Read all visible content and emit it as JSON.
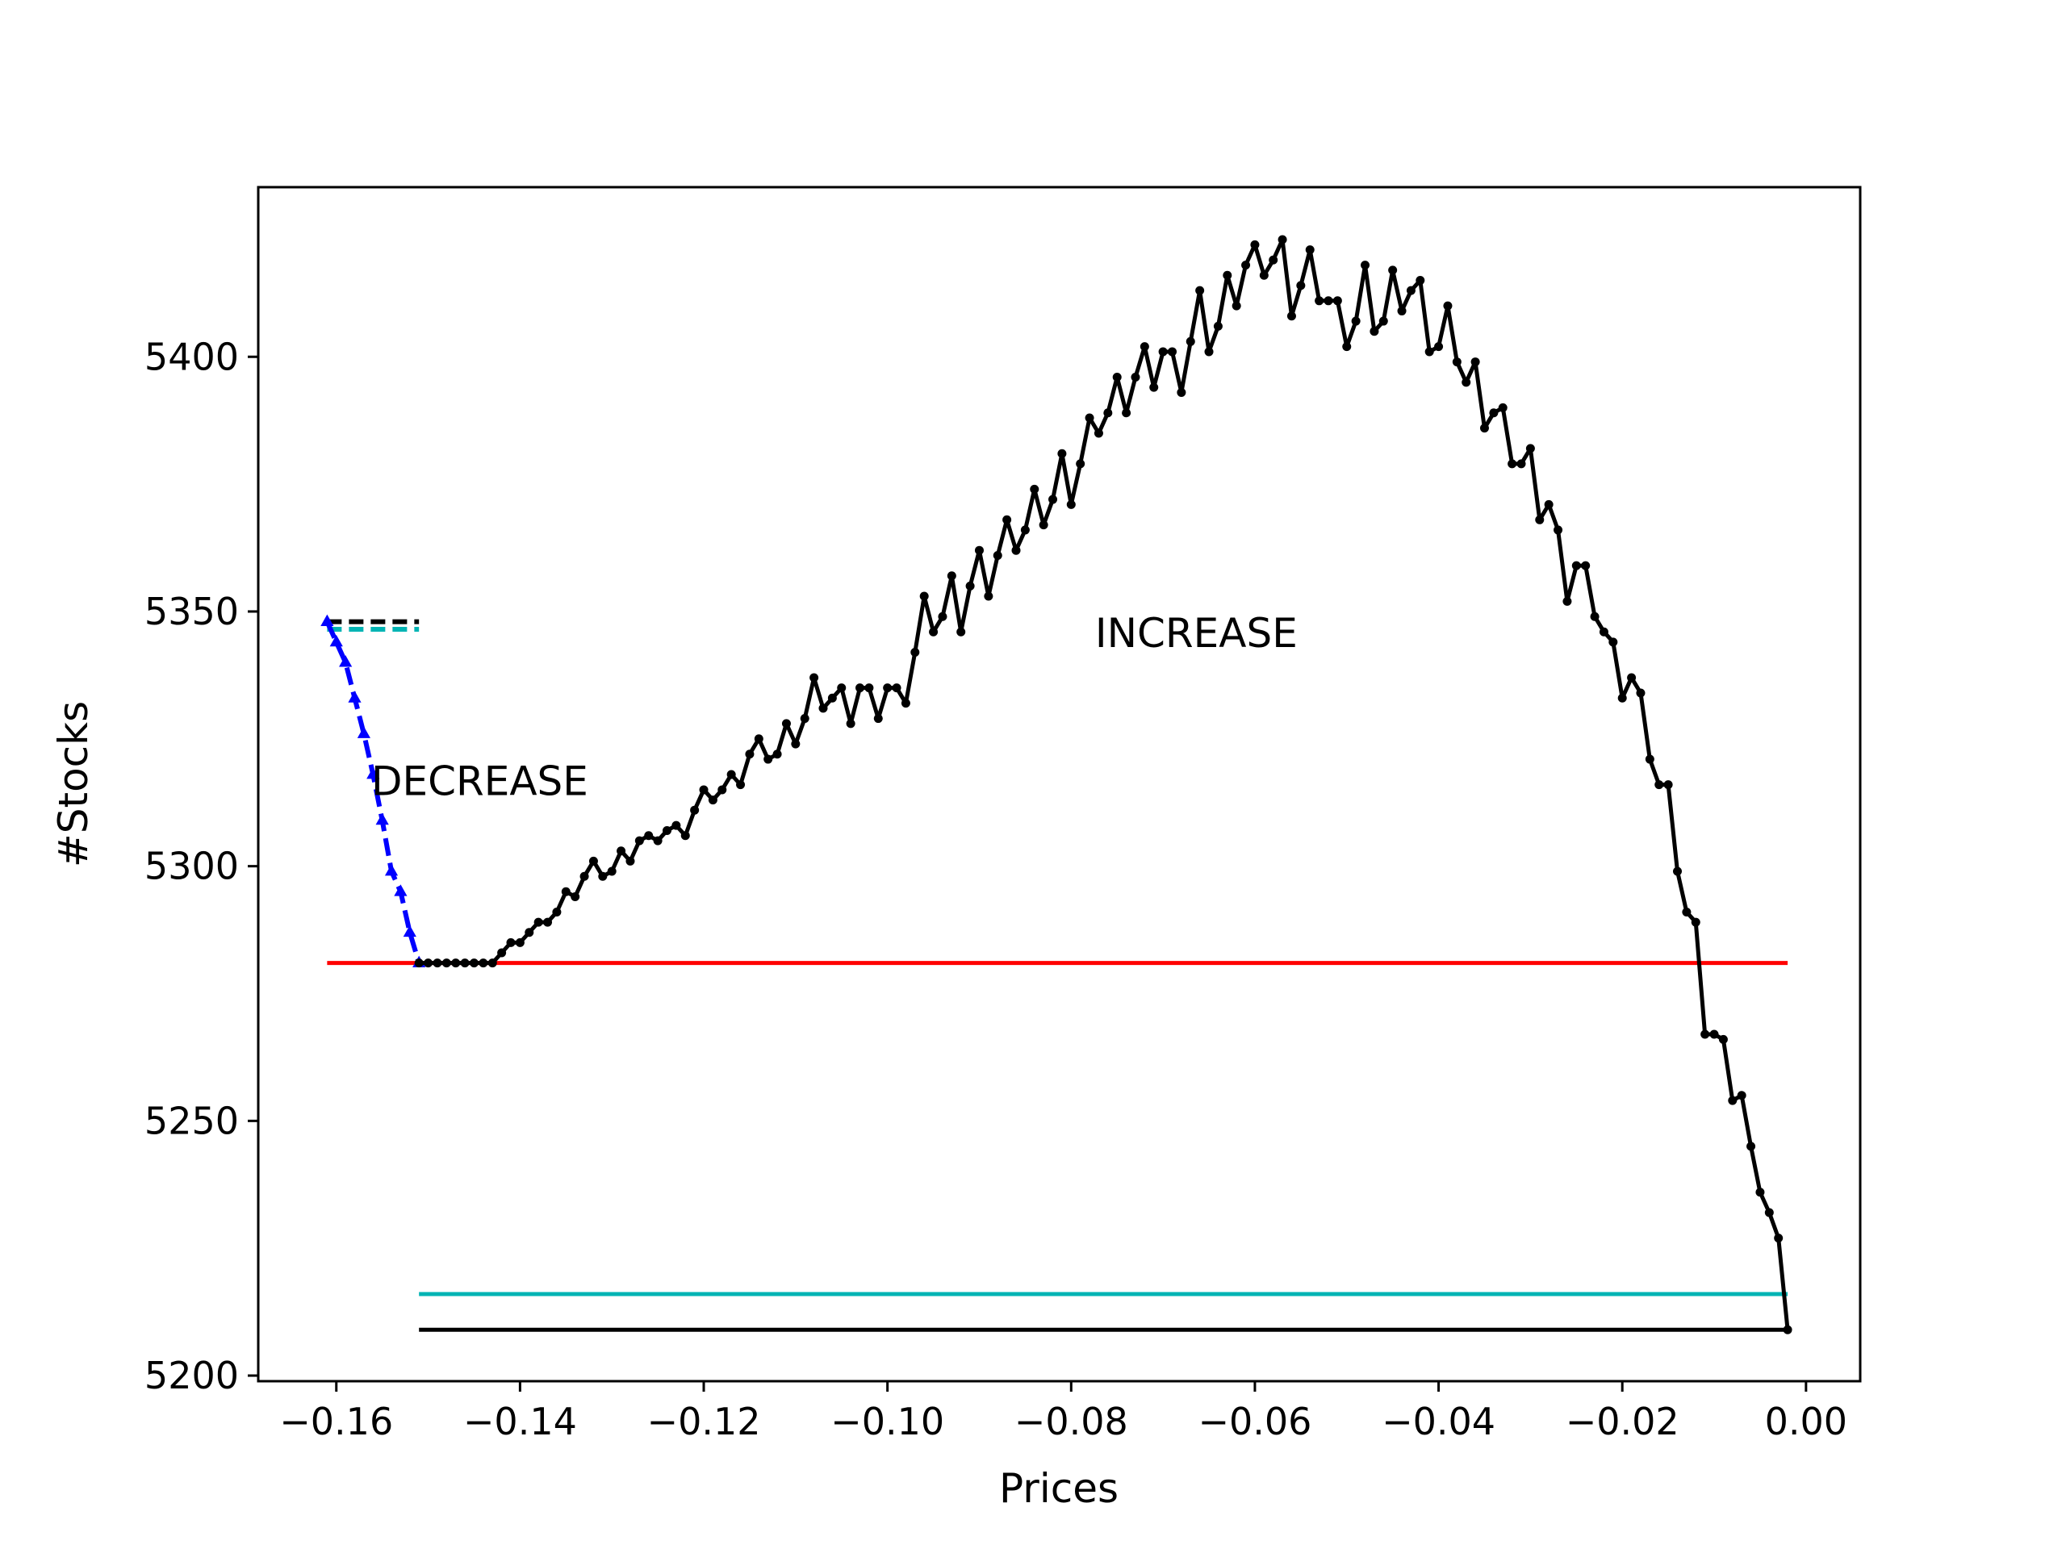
{
  "chart_data": {
    "type": "line",
    "xlabel": "Prices",
    "ylabel": "#Stocks",
    "xlim": [
      -0.1685,
      0.0059
    ],
    "ylim": [
      5198.9,
      5433.3
    ],
    "xticks": [
      -0.16,
      -0.14,
      -0.12,
      -0.1,
      -0.08,
      -0.06,
      -0.04,
      -0.02,
      0.0
    ],
    "xtick_labels": [
      "−0.16",
      "−0.14",
      "−0.12",
      "−0.10",
      "−0.08",
      "−0.06",
      "−0.04",
      "−0.02",
      "0.00"
    ],
    "yticks": [
      5200,
      5250,
      5300,
      5350,
      5400
    ],
    "ytick_labels": [
      "5200",
      "5250",
      "5300",
      "5350",
      "5400"
    ],
    "grid": false,
    "annotations": [
      {
        "text": "DECREASE",
        "x": -0.1562,
        "y": 5314
      },
      {
        "text": "INCREASE",
        "x": -0.0774,
        "y": 5343
      }
    ],
    "series": [
      {
        "style": "black-solid-markers",
        "color": "#000000",
        "x": [
          -0.151,
          -0.15,
          -0.149,
          -0.148,
          -0.147,
          -0.146,
          -0.145,
          -0.144,
          -0.143,
          -0.142,
          -0.141,
          -0.14,
          -0.139,
          -0.138,
          -0.137,
          -0.136,
          -0.135,
          -0.134,
          -0.133,
          -0.132,
          -0.131,
          -0.13,
          -0.129,
          -0.128,
          -0.127,
          -0.126,
          -0.125,
          -0.124,
          -0.123,
          -0.122,
          -0.121,
          -0.12,
          -0.119,
          -0.118,
          -0.117,
          -0.116,
          -0.115,
          -0.114,
          -0.113,
          -0.112,
          -0.111,
          -0.11,
          -0.109,
          -0.108,
          -0.107,
          -0.106,
          -0.105,
          -0.104,
          -0.103,
          -0.102,
          -0.101,
          -0.1,
          -0.099,
          -0.098,
          -0.097,
          -0.096,
          -0.095,
          -0.094,
          -0.093,
          -0.092,
          -0.091,
          -0.09,
          -0.089,
          -0.088,
          -0.087,
          -0.086,
          -0.085,
          -0.084,
          -0.083,
          -0.082,
          -0.081,
          -0.08,
          -0.079,
          -0.078,
          -0.077,
          -0.076,
          -0.075,
          -0.074,
          -0.073,
          -0.072,
          -0.071,
          -0.07,
          -0.069,
          -0.068,
          -0.067,
          -0.066,
          -0.065,
          -0.064,
          -0.063,
          -0.062,
          -0.061,
          -0.06,
          -0.059,
          -0.058,
          -0.057,
          -0.056,
          -0.055,
          -0.054,
          -0.053,
          -0.052,
          -0.051,
          -0.05,
          -0.049,
          -0.048,
          -0.047,
          -0.046,
          -0.045,
          -0.044,
          -0.043,
          -0.042,
          -0.041,
          -0.04,
          -0.039,
          -0.038,
          -0.037,
          -0.036,
          -0.035,
          -0.034,
          -0.033,
          -0.032,
          -0.031,
          -0.03,
          -0.029,
          -0.028,
          -0.027,
          -0.026,
          -0.025,
          -0.024,
          -0.023,
          -0.022,
          -0.021,
          -0.02,
          -0.019,
          -0.018,
          -0.017,
          -0.016,
          -0.015,
          -0.014,
          -0.013,
          -0.012,
          -0.011,
          -0.01,
          -0.009,
          -0.008,
          -0.007,
          -0.006,
          -0.005,
          -0.004,
          -0.003,
          -0.002
        ],
        "y": [
          5281,
          5281,
          5281,
          5281,
          5281,
          5281,
          5281,
          5281,
          5281,
          5283,
          5285,
          5285,
          5287,
          5289,
          5289,
          5291,
          5295,
          5294,
          5298,
          5301,
          5298,
          5299,
          5303,
          5301,
          5305,
          5306,
          5305,
          5307,
          5308,
          5306,
          5311,
          5315,
          5313,
          5315,
          5318,
          5316,
          5322,
          5325,
          5321,
          5322,
          5328,
          5324,
          5329,
          5337,
          5331,
          5333,
          5335,
          5328,
          5335,
          5335,
          5329,
          5335,
          5335,
          5332,
          5342,
          5353,
          5346,
          5349,
          5357,
          5346,
          5355,
          5362,
          5353,
          5361,
          5368,
          5362,
          5366,
          5374,
          5367,
          5372,
          5381,
          5371,
          5379,
          5388,
          5385,
          5389,
          5396,
          5389,
          5396,
          5402,
          5394,
          5401,
          5401,
          5393,
          5403,
          5413,
          5401,
          5406,
          5416,
          5410,
          5418,
          5422,
          5416,
          5419,
          5423,
          5408,
          5414,
          5421,
          5411,
          5411,
          5411,
          5402,
          5407,
          5418,
          5405,
          5407,
          5417,
          5409,
          5413,
          5415,
          5401,
          5402,
          5410,
          5399,
          5395,
          5399,
          5386,
          5389,
          5390,
          5379,
          5379,
          5382,
          5368,
          5371,
          5366,
          5352,
          5359,
          5359,
          5349,
          5346,
          5344,
          5333,
          5337,
          5334,
          5321,
          5316,
          5316,
          5299,
          5291,
          5289,
          5267,
          5267,
          5266,
          5254,
          5255,
          5245,
          5236,
          5232,
          5227,
          5209
        ]
      },
      {
        "style": "blue-dashed-triangles",
        "color": "#0000ff",
        "x": [
          -0.161,
          -0.16,
          -0.159,
          -0.158,
          -0.157,
          -0.156,
          -0.155,
          -0.154,
          -0.153,
          -0.152,
          -0.151
        ],
        "y": [
          5348,
          5344,
          5340,
          5333,
          5326,
          5318,
          5309,
          5299,
          5295,
          5287,
          5281
        ]
      },
      {
        "style": "red-solid",
        "color": "#ff0000",
        "x": [
          -0.161,
          -0.002
        ],
        "y": [
          5281,
          5281
        ]
      },
      {
        "style": "cyan-solid",
        "color": "#00b4b4",
        "x": [
          -0.151,
          -0.002
        ],
        "y": [
          5216,
          5216
        ]
      },
      {
        "style": "black-solid",
        "color": "#000000",
        "x": [
          -0.151,
          -0.002
        ],
        "y": [
          5209,
          5209
        ]
      },
      {
        "style": "black-dashed",
        "color": "#000000",
        "x": [
          -0.161,
          -0.151
        ],
        "y": [
          5348,
          5348
        ]
      },
      {
        "style": "cyan-dashed",
        "color": "#00b4b4",
        "x": [
          -0.161,
          -0.151
        ],
        "y": [
          5346.5,
          5346.5
        ]
      }
    ]
  }
}
